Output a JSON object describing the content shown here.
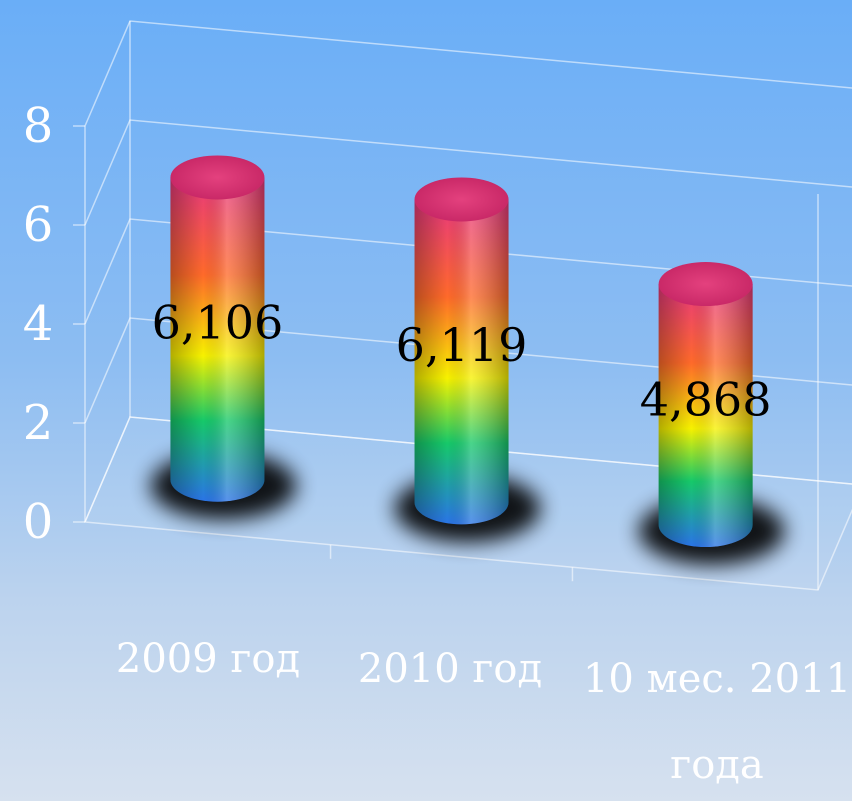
{
  "chart_data": {
    "type": "bar",
    "style": "3d-cylinder",
    "categories": [
      "2009 год",
      "2010 год",
      "10 мес. 2011 года"
    ],
    "category_lines": [
      [
        "2009 год"
      ],
      [
        "2010 год"
      ],
      [
        "10 мес. 2011",
        "года"
      ]
    ],
    "values": [
      6.106,
      6.119,
      4.868
    ],
    "data_labels": [
      "6,106",
      "6,119",
      "4,868"
    ],
    "yticks": [
      "0",
      "2",
      "4",
      "6",
      "8"
    ],
    "ylim": [
      0,
      8
    ],
    "grid": true,
    "legend": "none"
  },
  "colors": {
    "background_top": "#6aaef7",
    "background_bottom": "#d6e1ef",
    "axis_text": "#ffffff",
    "bar_top": "#e8387f",
    "bar_orange": "#ff6a2a",
    "bar_yellow": "#f7f200",
    "bar_green": "#16c96a",
    "bar_bottom": "#2a74e8"
  }
}
